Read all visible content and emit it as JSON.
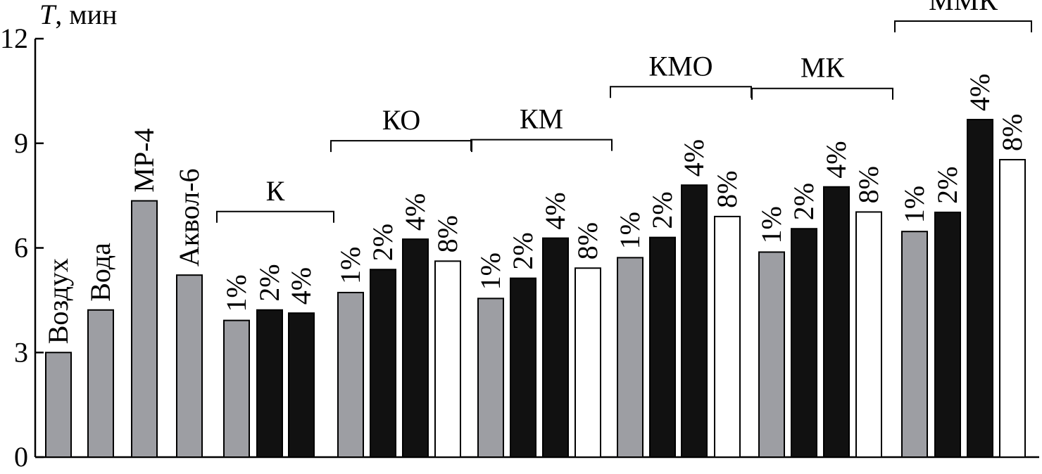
{
  "colors": {
    "gray": "#9d9ea3",
    "black": "#111111",
    "white": "#ffffff",
    "stroke": "#000000"
  },
  "chart_data": {
    "type": "bar",
    "ylabel_italic": "T",
    "ylabel_unit": ", мин",
    "ylim": [
      0,
      12
    ],
    "yticks": [
      "0",
      "3",
      "6",
      "9",
      "12"
    ],
    "grid": false,
    "bars": [
      {
        "label": "Воздух",
        "value": 3.0,
        "color": "gray",
        "group": ""
      },
      {
        "label": "Вода",
        "value": 4.22,
        "color": "gray",
        "group": ""
      },
      {
        "label": "МР-4",
        "value": 7.35,
        "color": "gray",
        "group": ""
      },
      {
        "label": "Аквол-6",
        "value": 5.22,
        "color": "gray",
        "group": ""
      },
      {
        "label": "1%",
        "value": 3.92,
        "color": "gray",
        "group": "К"
      },
      {
        "label": "2%",
        "value": 4.22,
        "color": "black",
        "group": "К"
      },
      {
        "label": "4%",
        "value": 4.13,
        "color": "black",
        "group": "К"
      },
      {
        "label": "1%",
        "value": 4.72,
        "color": "gray",
        "group": "КО"
      },
      {
        "label": "2%",
        "value": 5.38,
        "color": "black",
        "group": "КО"
      },
      {
        "label": "4%",
        "value": 6.25,
        "color": "black",
        "group": "КО"
      },
      {
        "label": "8%",
        "value": 5.62,
        "color": "white",
        "group": "КО"
      },
      {
        "label": "1%",
        "value": 4.55,
        "color": "gray",
        "group": "КМ"
      },
      {
        "label": "2%",
        "value": 5.13,
        "color": "black",
        "group": "КМ"
      },
      {
        "label": "4%",
        "value": 6.28,
        "color": "black",
        "group": "КМ"
      },
      {
        "label": "8%",
        "value": 5.42,
        "color": "white",
        "group": "КМ"
      },
      {
        "label": "1%",
        "value": 5.72,
        "color": "gray",
        "group": "КМО"
      },
      {
        "label": "2%",
        "value": 6.3,
        "color": "black",
        "group": "КМО"
      },
      {
        "label": "4%",
        "value": 7.8,
        "color": "black",
        "group": "КМО"
      },
      {
        "label": "8%",
        "value": 6.9,
        "color": "white",
        "group": "КМО"
      },
      {
        "label": "1%",
        "value": 5.88,
        "color": "gray",
        "group": "МК"
      },
      {
        "label": "2%",
        "value": 6.55,
        "color": "black",
        "group": "МК"
      },
      {
        "label": "4%",
        "value": 7.75,
        "color": "black",
        "group": "МК"
      },
      {
        "label": "8%",
        "value": 7.03,
        "color": "white",
        "group": "МК"
      },
      {
        "label": "1%",
        "value": 6.47,
        "color": "gray",
        "group": "ММК"
      },
      {
        "label": "2%",
        "value": 7.02,
        "color": "black",
        "group": "ММК"
      },
      {
        "label": "4%",
        "value": 9.68,
        "color": "black",
        "group": "ММК"
      },
      {
        "label": "8%",
        "value": 8.53,
        "color": "white",
        "group": "ММК"
      }
    ],
    "groups": [
      "К",
      "КО",
      "КМ",
      "КМО",
      "МК",
      "ММК"
    ]
  }
}
